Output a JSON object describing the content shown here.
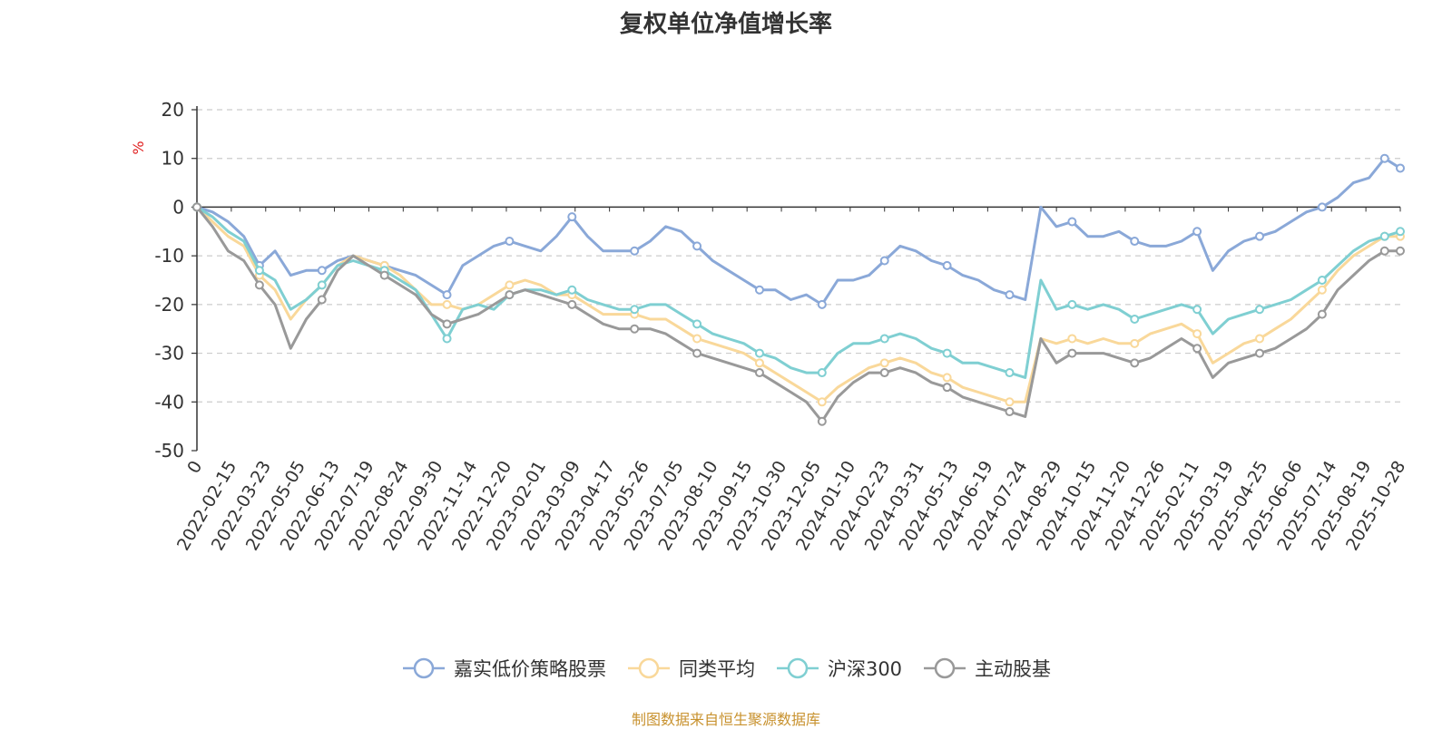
{
  "chart_data": {
    "type": "line",
    "title": "复权单位净值增长率",
    "ylabel": "%",
    "xlabel": "",
    "ylim": [
      -50,
      20
    ],
    "yticks": [
      20,
      10,
      0,
      -10,
      -20,
      -30,
      -40,
      -50
    ],
    "grid": true,
    "legend_position": "bottom",
    "x_tick_labels": [
      "0",
      "2022-02-15",
      "2022-03-23",
      "2022-05-05",
      "2022-06-13",
      "2022-07-19",
      "2022-08-24",
      "2022-09-30",
      "2022-11-14",
      "2022-12-20",
      "2023-02-01",
      "2023-03-09",
      "2023-04-17",
      "2023-05-26",
      "2023-07-05",
      "2023-08-10",
      "2023-09-15",
      "2023-10-30",
      "2023-12-05",
      "2024-01-10",
      "2024-02-23",
      "2024-03-31",
      "2024-05-13",
      "2024-06-19",
      "2024-07-24",
      "2024-08-29",
      "2024-10-15",
      "2024-11-20",
      "2024-12-26",
      "2025-02-11",
      "2025-03-19",
      "2025-04-25",
      "2025-06-06",
      "2025-07-14",
      "2025-08-19",
      "2025-10-28"
    ],
    "x": [
      "0",
      "2022-01-15",
      "2022-02-15",
      "2022-03-10",
      "2022-03-23",
      "2022-04-20",
      "2022-05-05",
      "2022-05-20",
      "2022-06-13",
      "2022-07-01",
      "2022-07-19",
      "2022-08-05",
      "2022-08-24",
      "2022-09-15",
      "2022-09-30",
      "2022-10-20",
      "2022-11-14",
      "2022-12-01",
      "2022-12-20",
      "2023-01-10",
      "2023-02-01",
      "2023-02-20",
      "2023-03-09",
      "2023-03-25",
      "2023-04-17",
      "2023-05-05",
      "2023-05-26",
      "2023-06-15",
      "2023-07-05",
      "2023-07-20",
      "2023-08-10",
      "2023-08-25",
      "2023-09-15",
      "2023-10-10",
      "2023-10-30",
      "2023-11-15",
      "2023-12-05",
      "2023-12-20",
      "2024-01-10",
      "2024-01-30",
      "2024-02-05",
      "2024-02-23",
      "2024-03-10",
      "2024-03-31",
      "2024-04-20",
      "2024-05-13",
      "2024-06-01",
      "2024-06-19",
      "2024-07-05",
      "2024-07-24",
      "2024-08-10",
      "2024-08-29",
      "2024-09-20",
      "2024-09-27",
      "2024-10-08",
      "2024-10-15",
      "2024-11-01",
      "2024-11-20",
      "2024-12-10",
      "2024-12-26",
      "2025-01-15",
      "2025-02-11",
      "2025-03-01",
      "2025-03-19",
      "2025-04-03",
      "2025-04-07",
      "2025-04-25",
      "2025-05-15",
      "2025-06-06",
      "2025-06-25",
      "2025-07-14",
      "2025-08-01",
      "2025-08-19",
      "2025-09-05",
      "2025-09-20",
      "2025-10-05",
      "2025-10-15",
      "2025-10-28"
    ],
    "series": [
      {
        "name": "嘉实低价策略股票",
        "color": "#8aa8d8",
        "values": [
          0,
          -1,
          -3,
          -6,
          -12,
          -9,
          -14,
          -13,
          -13,
          -11,
          -10,
          -11,
          -12,
          -13,
          -14,
          -16,
          -18,
          -12,
          -10,
          -8,
          -7,
          -8,
          -9,
          -6,
          -2,
          -6,
          -9,
          -9,
          -9,
          -7,
          -4,
          -5,
          -8,
          -11,
          -13,
          -15,
          -17,
          -17,
          -19,
          -18,
          -20,
          -15,
          -15,
          -14,
          -11,
          -8,
          -9,
          -11,
          -12,
          -14,
          -15,
          -17,
          -18,
          -19,
          0,
          -4,
          -3,
          -6,
          -6,
          -5,
          -7,
          -8,
          -8,
          -7,
          -5,
          -13,
          -9,
          -7,
          -6,
          -5,
          -3,
          -1,
          0,
          2,
          5,
          6,
          10,
          8
        ]
      },
      {
        "name": "同类平均",
        "color": "#f9d89a",
        "values": [
          0,
          -3,
          -6,
          -8,
          -14,
          -17,
          -23,
          -19,
          -16,
          -12,
          -10,
          -11,
          -12,
          -14,
          -17,
          -20,
          -20,
          -21,
          -20,
          -18,
          -16,
          -15,
          -16,
          -18,
          -18,
          -20,
          -22,
          -22,
          -22,
          -23,
          -23,
          -25,
          -27,
          -28,
          -29,
          -30,
          -32,
          -34,
          -36,
          -38,
          -40,
          -37,
          -35,
          -33,
          -32,
          -31,
          -32,
          -34,
          -35,
          -37,
          -38,
          -39,
          -40,
          -40,
          -27,
          -28,
          -27,
          -28,
          -27,
          -28,
          -28,
          -26,
          -25,
          -24,
          -26,
          -32,
          -30,
          -28,
          -27,
          -25,
          -23,
          -20,
          -17,
          -13,
          -10,
          -8,
          -6,
          -6
        ]
      },
      {
        "name": "沪深300",
        "color": "#7fcfd2",
        "values": [
          0,
          -2,
          -5,
          -7,
          -13,
          -15,
          -21,
          -19,
          -16,
          -12,
          -11,
          -12,
          -13,
          -15,
          -17,
          -22,
          -27,
          -21,
          -20,
          -21,
          -18,
          -17,
          -17,
          -18,
          -17,
          -19,
          -20,
          -21,
          -21,
          -20,
          -20,
          -22,
          -24,
          -26,
          -27,
          -28,
          -30,
          -31,
          -33,
          -34,
          -34,
          -30,
          -28,
          -28,
          -27,
          -26,
          -27,
          -29,
          -30,
          -32,
          -32,
          -33,
          -34,
          -35,
          -15,
          -21,
          -20,
          -21,
          -20,
          -21,
          -23,
          -22,
          -21,
          -20,
          -21,
          -26,
          -23,
          -22,
          -21,
          -20,
          -19,
          -17,
          -15,
          -12,
          -9,
          -7,
          -6,
          -5
        ]
      },
      {
        "name": "主动股基",
        "color": "#999999",
        "values": [
          0,
          -4,
          -9,
          -11,
          -16,
          -20,
          -29,
          -23,
          -19,
          -13,
          -10,
          -12,
          -14,
          -16,
          -18,
          -22,
          -24,
          -23,
          -22,
          -20,
          -18,
          -17,
          -18,
          -19,
          -20,
          -22,
          -24,
          -25,
          -25,
          -25,
          -26,
          -28,
          -30,
          -31,
          -32,
          -33,
          -34,
          -36,
          -38,
          -40,
          -44,
          -39,
          -36,
          -34,
          -34,
          -33,
          -34,
          -36,
          -37,
          -39,
          -40,
          -41,
          -42,
          -43,
          -27,
          -32,
          -30,
          -30,
          -30,
          -31,
          -32,
          -31,
          -29,
          -27,
          -29,
          -35,
          -32,
          -31,
          -30,
          -29,
          -27,
          -25,
          -22,
          -17,
          -14,
          -11,
          -9,
          -9
        ]
      }
    ]
  },
  "source_text": "制图数据来自恒生聚源数据库"
}
